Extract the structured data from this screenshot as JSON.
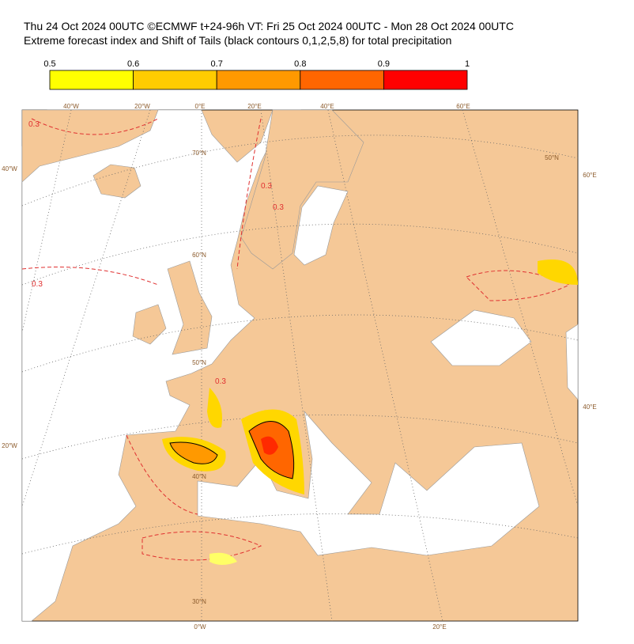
{
  "header": {
    "line1": "Thu 24 Oct 2024 00UTC ©ECMWF t+24-96h  VT: Fri 25 Oct 2024 00UTC - Mon 28 Oct 2024 00UTC",
    "line2": "Extreme forecast index and Shift of Tails (black contours 0,1,2,5,8) for total precipitation"
  },
  "colorbar": {
    "ticks": [
      "0.5",
      "0.6",
      "0.7",
      "0.8",
      "0.9",
      "1"
    ],
    "colors": [
      "#ffff00",
      "#ffcc00",
      "#ff9900",
      "#ff6600",
      "#ff0000"
    ]
  },
  "map": {
    "grid_labels": [
      "40°W",
      "20°W",
      "0°E",
      "20°E",
      "40°E",
      "60°E",
      "40°W",
      "20°W",
      "60°E",
      "40°E",
      "0°W",
      "20°E",
      "70°N",
      "60°N",
      "50°N",
      "40°N",
      "30°N",
      "50°N"
    ],
    "contour_labels": [
      "0.3",
      "0.3",
      "0.3",
      "0.3",
      "0.3"
    ]
  }
}
